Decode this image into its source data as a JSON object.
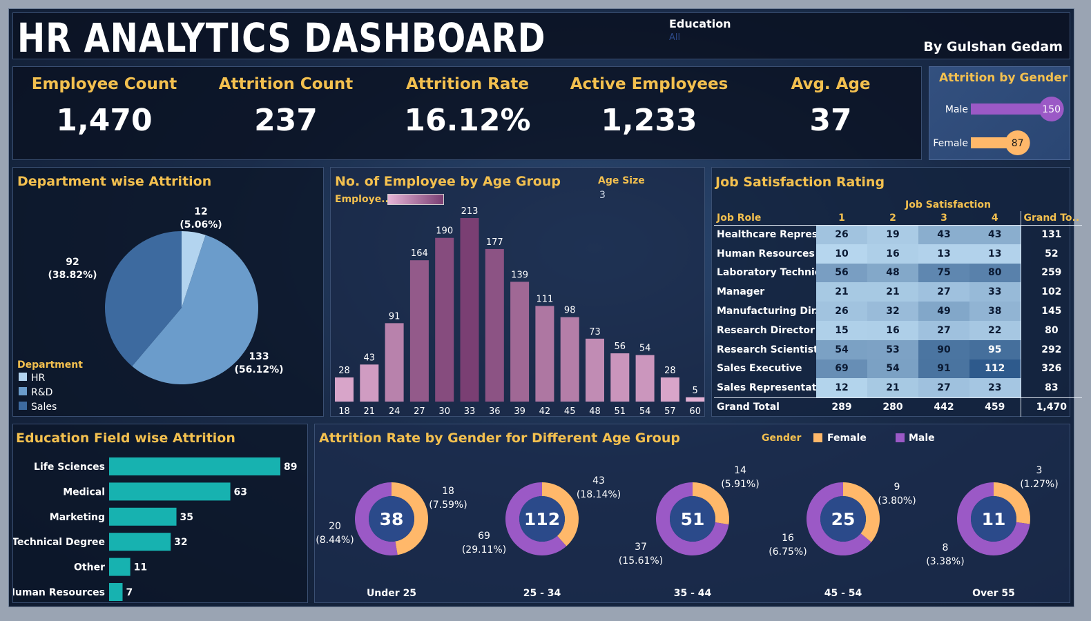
{
  "header": {
    "title": "HR ANALYTICS DASHBOARD",
    "author": "By Gulshan Gedam",
    "filter_label": "Education",
    "filter_value": "All"
  },
  "kpis": [
    {
      "label": "Employee Count",
      "value": "1,470"
    },
    {
      "label": "Attrition Count",
      "value": "237"
    },
    {
      "label": "Attrition Rate",
      "value": "16.12%"
    },
    {
      "label": "Active Employees",
      "value": "1,233"
    },
    {
      "label": "Avg. Age",
      "value": "37"
    }
  ],
  "colors": {
    "gold": "#f3c04f",
    "female": "#ffb86a",
    "male": "#9b59c6",
    "teal": "#17b2b0",
    "hr": "#b3d4ef",
    "rd": "#6b9ccb",
    "sales": "#3d6a9f"
  },
  "chart_data": [
    {
      "id": "gender",
      "type": "bar",
      "title": "Attrition by Gender",
      "categories": [
        "Male",
        "Female"
      ],
      "values": [
        150,
        87
      ]
    },
    {
      "id": "department",
      "type": "pie",
      "title": "Department wise Attrition",
      "legend_title": "Department",
      "categories": [
        "HR",
        "R&D",
        "Sales"
      ],
      "values": [
        12,
        133,
        92
      ],
      "labels": [
        "12\n(5.06%)",
        "133\n(56.12%)",
        "92\n(38.82%)"
      ]
    },
    {
      "id": "age",
      "type": "bar",
      "title": "No. of Employee by Age Group",
      "legend_label": "Employe..",
      "param_label": "Age Size",
      "param_value": "3",
      "categories": [
        "18",
        "21",
        "24",
        "27",
        "30",
        "33",
        "36",
        "39",
        "42",
        "45",
        "48",
        "51",
        "54",
        "57",
        "60"
      ],
      "values": [
        28,
        43,
        91,
        164,
        190,
        213,
        177,
        139,
        111,
        98,
        73,
        56,
        54,
        28,
        5
      ]
    },
    {
      "id": "jobsat",
      "type": "table",
      "title": "Job Satisfaction Rating",
      "column_group": "Job Satisfaction",
      "row_header": "Job Role",
      "columns": [
        "1",
        "2",
        "3",
        "4"
      ],
      "grand_label": "Grand To..",
      "rows": [
        {
          "role": "Healthcare Repres..",
          "values": [
            26,
            19,
            43,
            43
          ],
          "total": "131"
        },
        {
          "role": "Human Resources",
          "values": [
            10,
            16,
            13,
            13
          ],
          "total": "52"
        },
        {
          "role": "Laboratory Technic..",
          "values": [
            56,
            48,
            75,
            80
          ],
          "total": "259"
        },
        {
          "role": "Manager",
          "values": [
            21,
            21,
            27,
            33
          ],
          "total": "102"
        },
        {
          "role": "Manufacturing Dir..",
          "values": [
            26,
            32,
            49,
            38
          ],
          "total": "145"
        },
        {
          "role": "Research Director",
          "values": [
            15,
            16,
            27,
            22
          ],
          "total": "80"
        },
        {
          "role": "Research Scientist",
          "values": [
            54,
            53,
            90,
            95
          ],
          "total": "292"
        },
        {
          "role": "Sales Executive",
          "values": [
            69,
            54,
            91,
            112
          ],
          "total": "326"
        },
        {
          "role": "Sales Representati..",
          "values": [
            12,
            21,
            27,
            23
          ],
          "total": "83"
        }
      ],
      "grand_total": {
        "label": "Grand Total",
        "values": [
          "289",
          "280",
          "442",
          "459"
        ],
        "total": "1,470"
      }
    },
    {
      "id": "education",
      "type": "bar",
      "title": "Education Field wise Attrition",
      "categories": [
        "Life Sciences",
        "Medical",
        "Marketing",
        "Technical Degree",
        "Other",
        "Human Resources"
      ],
      "values": [
        89,
        63,
        35,
        32,
        11,
        7
      ]
    },
    {
      "id": "agegender",
      "type": "pie",
      "title": "Attrition Rate by Gender for Different Age Group",
      "legend_title": "Gender",
      "legend": [
        "Female",
        "Male"
      ],
      "groups": [
        {
          "name": "Under 25",
          "total": 38,
          "female": 18,
          "male": 20,
          "female_label": "18\n(7.59%)",
          "male_label": "20\n(8.44%)"
        },
        {
          "name": "25 - 34",
          "total": 112,
          "female": 43,
          "male": 69,
          "female_label": "43\n(18.14%)",
          "male_label": "69\n(29.11%)"
        },
        {
          "name": "35 - 44",
          "total": 51,
          "female": 14,
          "male": 37,
          "female_label": "14\n(5.91%)",
          "male_label": "37\n(15.61%)"
        },
        {
          "name": "45 - 54",
          "total": 25,
          "female": 9,
          "male": 16,
          "female_label": "9\n(3.80%)",
          "male_label": "16\n(6.75%)"
        },
        {
          "name": "Over 55",
          "total": 11,
          "female": 3,
          "male": 8,
          "female_label": "3\n(1.27%)",
          "male_label": "8\n(3.38%)"
        }
      ]
    }
  ]
}
